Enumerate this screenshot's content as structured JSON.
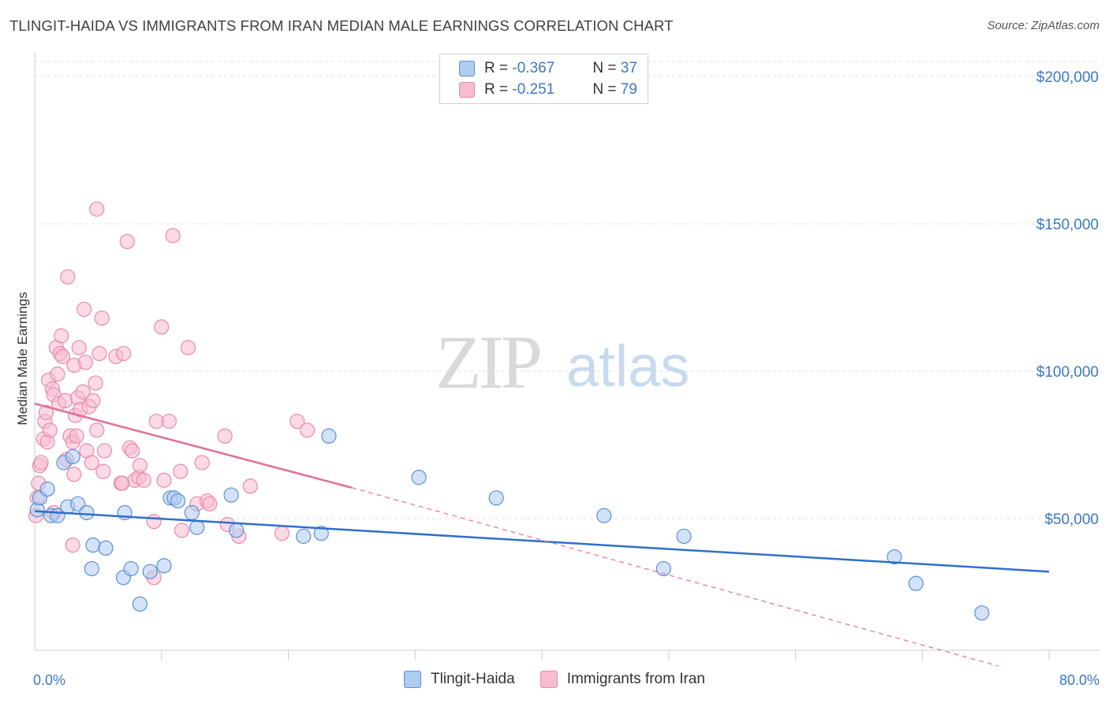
{
  "header": {
    "title": "TLINGIT-HAIDA VS IMMIGRANTS FROM IRAN MEDIAN MALE EARNINGS CORRELATION CHART",
    "source": "Source: ZipAtlas.com"
  },
  "legend": {
    "rows": [
      {
        "r_label": "R = ",
        "r_value": "-0.367",
        "n_label": "N = ",
        "n_value": "37"
      },
      {
        "r_label": "R = ",
        "r_value": "-0.251",
        "n_label": "N = ",
        "n_value": "79"
      }
    ]
  },
  "watermark": {
    "zip": "ZIP",
    "atlas": "atlas"
  },
  "colors": {
    "blue_fill": "#aecbf0",
    "blue_stroke": "#5b8fd6",
    "blue_line": "#2f6fcb",
    "pink_fill": "#f7bcd0",
    "pink_stroke": "#e68aa9",
    "pink_line": "#e0709a",
    "axis_text": "#3b78c4",
    "grid": "#dcdcdc"
  },
  "chart_data": {
    "type": "scatter",
    "title": "TLINGIT-HAIDA VS IMMIGRANTS FROM IRAN MEDIAN MALE EARNINGS CORRELATION CHART",
    "xlabel": "",
    "ylabel": "Median Male Earnings",
    "xlim": [
      0,
      80
    ],
    "ylim": [
      0,
      210000
    ],
    "x_ticks": [
      {
        "value": 0,
        "label": "0.0%"
      },
      {
        "value": 80,
        "label": "80.0%"
      }
    ],
    "y_ticks": [
      {
        "value": 50000,
        "label": "$50,000"
      },
      {
        "value": 100000,
        "label": "$100,000"
      },
      {
        "value": 150000,
        "label": "$150,000"
      },
      {
        "value": 200000,
        "label": "$200,000"
      }
    ],
    "series": [
      {
        "name": "Tlingit-Haida",
        "color": "blue",
        "points": [
          [
            0.2,
            53000
          ],
          [
            0.4,
            57000
          ],
          [
            1.0,
            60000
          ],
          [
            1.3,
            51000
          ],
          [
            1.8,
            51000
          ],
          [
            2.3,
            69000
          ],
          [
            2.6,
            54000
          ],
          [
            3.0,
            71000
          ],
          [
            3.4,
            55000
          ],
          [
            4.1,
            52000
          ],
          [
            4.6,
            41000
          ],
          [
            4.5,
            33000
          ],
          [
            5.6,
            40000
          ],
          [
            7.0,
            30000
          ],
          [
            7.1,
            52000
          ],
          [
            7.6,
            33000
          ],
          [
            8.3,
            21000
          ],
          [
            9.1,
            32000
          ],
          [
            10.2,
            34000
          ],
          [
            10.7,
            57000
          ],
          [
            11.0,
            57000
          ],
          [
            11.3,
            56000
          ],
          [
            12.4,
            52000
          ],
          [
            12.8,
            47000
          ],
          [
            15.5,
            58000
          ],
          [
            15.9,
            46000
          ],
          [
            21.2,
            44000
          ],
          [
            22.6,
            45000
          ],
          [
            23.2,
            78000
          ],
          [
            30.3,
            64000
          ],
          [
            36.4,
            57000
          ],
          [
            44.9,
            51000
          ],
          [
            49.6,
            33000
          ],
          [
            51.2,
            44000
          ],
          [
            67.8,
            37000
          ],
          [
            69.5,
            28000
          ],
          [
            74.7,
            18000
          ]
        ],
        "trendline": {
          "x": [
            0,
            80
          ],
          "y": [
            52500,
            32000
          ]
        }
      },
      {
        "name": "Immigrants from Iran",
        "color": "pink",
        "points": [
          [
            0.1,
            51000
          ],
          [
            0.2,
            57000
          ],
          [
            0.3,
            62000
          ],
          [
            0.4,
            68000
          ],
          [
            0.5,
            69000
          ],
          [
            0.7,
            77000
          ],
          [
            0.8,
            83000
          ],
          [
            0.9,
            86000
          ],
          [
            1.0,
            76000
          ],
          [
            1.2,
            80000
          ],
          [
            1.1,
            97000
          ],
          [
            1.4,
            94000
          ],
          [
            1.5,
            92000
          ],
          [
            1.7,
            108000
          ],
          [
            1.8,
            99000
          ],
          [
            1.9,
            89000
          ],
          [
            2.0,
            106000
          ],
          [
            2.1,
            112000
          ],
          [
            2.2,
            105000
          ],
          [
            2.4,
            90000
          ],
          [
            2.5,
            70000
          ],
          [
            2.6,
            132000
          ],
          [
            2.8,
            78000
          ],
          [
            3.0,
            76000
          ],
          [
            3.1,
            65000
          ],
          [
            3.1,
            102000
          ],
          [
            3.2,
            85000
          ],
          [
            3.3,
            78000
          ],
          [
            3.4,
            91000
          ],
          [
            3.5,
            108000
          ],
          [
            3.6,
            87000
          ],
          [
            3.8,
            93000
          ],
          [
            3.9,
            121000
          ],
          [
            4.0,
            103000
          ],
          [
            4.1,
            73000
          ],
          [
            4.3,
            88000
          ],
          [
            4.5,
            69000
          ],
          [
            4.6,
            90000
          ],
          [
            4.8,
            96000
          ],
          [
            4.9,
            80000
          ],
          [
            5.1,
            106000
          ],
          [
            5.3,
            118000
          ],
          [
            5.4,
            66000
          ],
          [
            5.5,
            73000
          ],
          [
            4.9,
            155000
          ],
          [
            6.4,
            105000
          ],
          [
            6.8,
            62000
          ],
          [
            7.0,
            106000
          ],
          [
            7.3,
            144000
          ],
          [
            7.5,
            74000
          ],
          [
            7.7,
            73000
          ],
          [
            7.9,
            63000
          ],
          [
            8.2,
            64000
          ],
          [
            8.3,
            68000
          ],
          [
            8.6,
            63000
          ],
          [
            9.4,
            49000
          ],
          [
            9.6,
            83000
          ],
          [
            10.0,
            115000
          ],
          [
            10.2,
            63000
          ],
          [
            10.6,
            83000
          ],
          [
            10.9,
            146000
          ],
          [
            11.5,
            66000
          ],
          [
            11.6,
            46000
          ],
          [
            12.1,
            108000
          ],
          [
            12.8,
            55000
          ],
          [
            13.2,
            69000
          ],
          [
            13.6,
            56000
          ],
          [
            13.8,
            55000
          ],
          [
            15.0,
            78000
          ],
          [
            15.2,
            48000
          ],
          [
            16.1,
            44000
          ],
          [
            17.0,
            61000
          ],
          [
            19.5,
            45000
          ],
          [
            20.7,
            83000
          ],
          [
            21.5,
            80000
          ],
          [
            9.4,
            30000
          ],
          [
            3.0,
            41000
          ],
          [
            6.9,
            62000
          ],
          [
            1.5,
            52000
          ]
        ],
        "trendline": {
          "x": [
            0,
            25
          ],
          "y": [
            89000,
            60500
          ]
        },
        "trendline_extension": {
          "x": [
            25,
            76
          ],
          "y": [
            60500,
            0
          ]
        }
      }
    ]
  }
}
